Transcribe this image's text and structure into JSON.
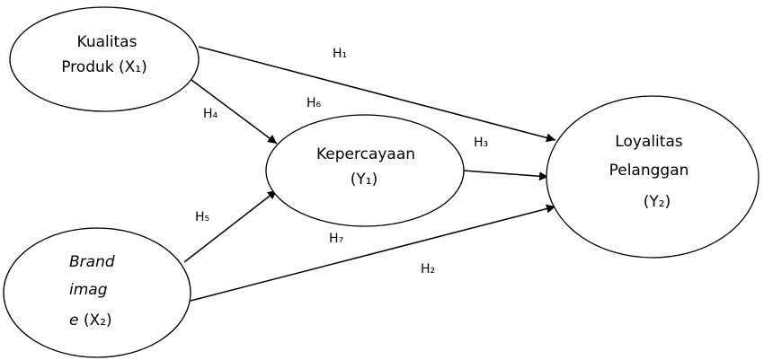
{
  "nodes": {
    "x1": {
      "line1": "Kualitas",
      "line2": "Produk (X₁)"
    },
    "x2": {
      "line1": "Brand",
      "line2": "imag",
      "line3_italic": "e",
      "line3_rest": " (X₂)"
    },
    "y1": {
      "line1": "Kepercayaan",
      "line2": "(Y₁)"
    },
    "y2": {
      "line1": "Loyalitas",
      "line2": "Pelanggan",
      "line3": "(Y₂)"
    }
  },
  "hypotheses": {
    "h1": "H₁",
    "h2": "H₂",
    "h3": "H₃",
    "h4": "H₄",
    "h5": "H₅",
    "h6": "H₆",
    "h7": "H₇"
  },
  "colors": {
    "stroke": "#000000",
    "background": "#ffffff"
  }
}
